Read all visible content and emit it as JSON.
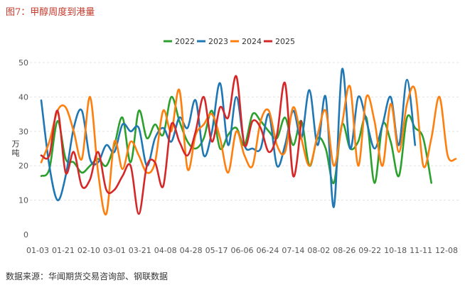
{
  "figure": {
    "title": "图7：甲醇周度到港量",
    "source": "数据来源：华闻期货交易咨询部、钢联数据"
  },
  "chart_data": {
    "type": "line",
    "title": "",
    "xlabel": "",
    "ylabel": "万吨",
    "ylim": [
      0,
      50
    ],
    "yticks": [
      0,
      10,
      20,
      30,
      40,
      50
    ],
    "grid": true,
    "legend_position": "top-center",
    "x_tick_labels": [
      "01-03",
      "01-21",
      "02-10",
      "03-01",
      "03-21",
      "04-08",
      "04-28",
      "05-17",
      "06-06",
      "06-24",
      "07-14",
      "08-02",
      "08-26",
      "09-22",
      "10-18",
      "11-11",
      "12-08"
    ],
    "series": [
      {
        "name": "2022",
        "color": "#2ca02c",
        "values": [
          17,
          19,
          33,
          22,
          21,
          18,
          20,
          22,
          20,
          26,
          34,
          21,
          36,
          28,
          32,
          29,
          40,
          33,
          27,
          25,
          28,
          36,
          25,
          29,
          31,
          26,
          35,
          33,
          30,
          28,
          34,
          26,
          33,
          20,
          28,
          25,
          15,
          32,
          25,
          27,
          34,
          15,
          32,
          27,
          17,
          34,
          31,
          28,
          15
        ]
      },
      {
        "name": "2023",
        "color": "#1f77b4",
        "values": [
          39,
          20,
          10,
          17,
          31,
          36,
          22,
          21,
          26,
          24,
          32,
          30,
          31,
          20,
          28,
          31,
          27,
          34,
          31,
          39,
          23,
          30,
          44,
          26,
          40,
          26,
          25,
          25,
          35,
          20,
          26,
          36,
          28,
          42,
          26,
          40,
          8,
          48,
          25,
          40,
          33,
          25,
          32,
          40,
          26,
          45,
          26
        ]
      },
      {
        "name": "2024",
        "color": "#ff7f0e",
        "values": [
          21,
          27,
          36,
          37,
          30,
          22,
          40,
          18,
          6,
          27,
          19,
          27,
          23,
          18,
          21,
          36,
          30,
          42,
          19,
          29,
          32,
          35,
          28,
          18,
          30,
          23,
          20,
          33,
          36,
          26,
          24,
          37,
          28,
          20,
          29,
          36,
          20,
          32,
          43,
          20,
          40,
          33,
          20,
          38,
          24,
          38,
          42,
          20,
          28,
          40,
          23,
          22
        ]
      },
      {
        "name": "2025",
        "color": "#d62728",
        "values": [
          23,
          23,
          36,
          18,
          24,
          14,
          16,
          24,
          13,
          13,
          17,
          20,
          6,
          20,
          21,
          14,
          32,
          27,
          23,
          30,
          40,
          27,
          37,
          34,
          46,
          26,
          33,
          31,
          24,
          29,
          44,
          17,
          33
        ]
      }
    ]
  }
}
